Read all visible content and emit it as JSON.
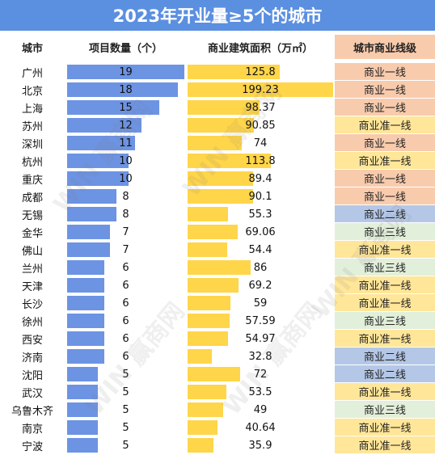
{
  "title": "2023年开业量≥5个的城市",
  "headers": {
    "city": "城市",
    "count": "项目数量（个）",
    "area": "商业建筑面积（万㎡）",
    "tier": "城市商业线级"
  },
  "colors": {
    "count_bar": "#6d93e3",
    "area_bar": "#ffd54a",
    "tier_backgrounds": {
      "商业一线": "#f8cbad",
      "商业准一线": "#ffe699",
      "商业二线": "#b4c7e7",
      "商业三线": "#e2efda"
    }
  },
  "watermark": "WIN 赢商网",
  "chart_data": {
    "type": "table",
    "title": "2023年开业量≥5个的城市",
    "columns": [
      "城市",
      "项目数量（个）",
      "商业建筑面积（万㎡）",
      "城市商业线级"
    ],
    "count_max": 19,
    "area_max": 199.23,
    "rows": [
      {
        "city": "广州",
        "count": "19",
        "area": "125.8",
        "tier": "商业一线"
      },
      {
        "city": "北京",
        "count": "18",
        "area": "199.23",
        "tier": "商业一线"
      },
      {
        "city": "上海",
        "count": "15",
        "area": "98.37",
        "tier": "商业一线"
      },
      {
        "city": "苏州",
        "count": "12",
        "area": "90.85",
        "tier": "商业准一线"
      },
      {
        "city": "深圳",
        "count": "11",
        "area": "74",
        "tier": "商业一线"
      },
      {
        "city": "杭州",
        "count": "10",
        "area": "113.8",
        "tier": "商业准一线"
      },
      {
        "city": "重庆",
        "count": "10",
        "area": "89.4",
        "tier": "商业一线"
      },
      {
        "city": "成都",
        "count": "8",
        "area": "90.1",
        "tier": "商业一线"
      },
      {
        "city": "无锡",
        "count": "8",
        "area": "55.3",
        "tier": "商业二线"
      },
      {
        "city": "金华",
        "count": "7",
        "area": "69.06",
        "tier": "商业三线"
      },
      {
        "city": "佛山",
        "count": "7",
        "area": "54.4",
        "tier": "商业准一线"
      },
      {
        "city": "兰州",
        "count": "6",
        "area": "86",
        "tier": "商业三线"
      },
      {
        "city": "天津",
        "count": "6",
        "area": "69.2",
        "tier": "商业准一线"
      },
      {
        "city": "长沙",
        "count": "6",
        "area": "59",
        "tier": "商业准一线"
      },
      {
        "city": "徐州",
        "count": "6",
        "area": "57.59",
        "tier": "商业三线"
      },
      {
        "city": "西安",
        "count": "6",
        "area": "54.97",
        "tier": "商业准一线"
      },
      {
        "city": "济南",
        "count": "6",
        "area": "32.8",
        "tier": "商业二线"
      },
      {
        "city": "沈阳",
        "count": "5",
        "area": "72",
        "tier": "商业二线"
      },
      {
        "city": "武汉",
        "count": "5",
        "area": "53.5",
        "tier": "商业准一线"
      },
      {
        "city": "乌鲁木齐",
        "count": "5",
        "area": "49",
        "tier": "商业三线"
      },
      {
        "city": "南京",
        "count": "5",
        "area": "40.64",
        "tier": "商业准一线"
      },
      {
        "city": "宁波",
        "count": "5",
        "area": "35.9",
        "tier": "商业准一线"
      }
    ]
  }
}
